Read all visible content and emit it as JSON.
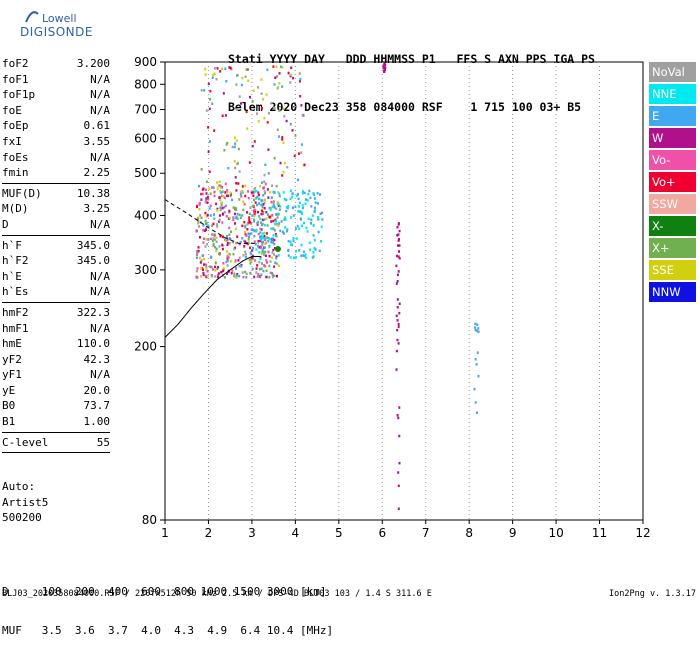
{
  "logo": {
    "line1": "Lowell",
    "line2": "DIGISONDE"
  },
  "header": {
    "line1": "Stati YYYY DAY   DDD HHMMSS P1   FFS S AXN PPS IGA PS",
    "line2": "Belem 2020 Dec23 358 084000 RSF    1 715 100 03+ B5"
  },
  "params": {
    "group1": [
      {
        "name": "foF2",
        "value": "3.200"
      },
      {
        "name": "foF1",
        "value": "N/A"
      },
      {
        "name": "foF1p",
        "value": "N/A"
      },
      {
        "name": "foE",
        "value": "N/A"
      },
      {
        "name": "foEp",
        "value": "0.61"
      },
      {
        "name": "fxI",
        "value": "3.55"
      },
      {
        "name": "foEs",
        "value": "N/A"
      },
      {
        "name": "fmin",
        "value": "2.25"
      }
    ],
    "group2": [
      {
        "name": "MUF(D)",
        "value": "10.38"
      },
      {
        "name": "M(D)",
        "value": "3.25"
      },
      {
        "name": "D",
        "value": "N/A"
      }
    ],
    "group3": [
      {
        "name": "h`F",
        "value": "345.0"
      },
      {
        "name": "h`F2",
        "value": "345.0"
      },
      {
        "name": "h`E",
        "value": "N/A"
      },
      {
        "name": "h`Es",
        "value": "N/A"
      }
    ],
    "group4": [
      {
        "name": "hmF2",
        "value": "322.3"
      },
      {
        "name": "hmF1",
        "value": "N/A"
      },
      {
        "name": "hmE",
        "value": "110.0"
      },
      {
        "name": "yF2",
        "value": "42.3"
      },
      {
        "name": "yF1",
        "value": "N/A"
      },
      {
        "name": "yE",
        "value": "20.0"
      },
      {
        "name": "B0",
        "value": "73.7"
      },
      {
        "name": "B1",
        "value": "1.00"
      }
    ],
    "group5": [
      {
        "name": "C-level",
        "value": "55"
      }
    ]
  },
  "auto": {
    "line1": "Auto:",
    "line2": "Artist5",
    "line3": "500200"
  },
  "legend": [
    {
      "label": "NoVal",
      "color": "#a0a0a0"
    },
    {
      "label": "NNE",
      "color": "#00e8f0"
    },
    {
      "label": "E",
      "color": "#40a8f0"
    },
    {
      "label": "W",
      "color": "#b0108c"
    },
    {
      "label": "Vo-",
      "color": "#f050a8"
    },
    {
      "label": "Vo+",
      "color": "#f00030"
    },
    {
      "label": "SSW",
      "color": "#f0a8a0"
    },
    {
      "label": "X-",
      "color": "#108010"
    },
    {
      "label": "X+",
      "color": "#70b050"
    },
    {
      "label": "SSE",
      "color": "#d0d010"
    },
    {
      "label": "NNW",
      "color": "#1010e0"
    }
  ],
  "bottom": {
    "line1": "D     100  200  400  600  800 1000 1500 3000 [km]",
    "line2": "MUF   3.5  3.6  3.7  4.0  4.3  4.9  6.4 10.4 [MHz]"
  },
  "footer": {
    "left": "BLJ03_2020358084000.RSF / 220fx512h 50 kHz 2.5 km / DPS-4D BLJ03 103 / 1.4 S 311.6 E",
    "right": "Ion2Png v. 1.3.17"
  },
  "chart_data": {
    "type": "scatter",
    "title": "",
    "xlabel": "",
    "ylabel": "",
    "xlim": [
      1,
      12
    ],
    "ylim": [
      80,
      900
    ],
    "y_scale": "log",
    "x_ticks": [
      1,
      2,
      3,
      4,
      5,
      6,
      7,
      8,
      9,
      10,
      11,
      12
    ],
    "y_ticks": [
      80,
      200,
      300,
      400,
      500,
      600,
      700,
      800,
      900
    ],
    "grid": "x dotted",
    "legend_position": "right",
    "echo_clusters": [
      {
        "name": "F-trace main",
        "x_range": [
          1.7,
          3.6
        ],
        "y_range": [
          290,
          480
        ],
        "directions": [
          "W",
          "Vo-",
          "Vo+",
          "E",
          "X+",
          "SSE",
          "NoVal"
        ]
      },
      {
        "name": "E-direction",
        "x_range": [
          3.0,
          4.6
        ],
        "y_range": [
          320,
          460
        ],
        "directions": [
          "E",
          "NNE"
        ]
      },
      {
        "name": "scattered high",
        "x_range": [
          1.8,
          4.2
        ],
        "y_range": [
          480,
          890
        ],
        "directions": [
          "SSE",
          "X+",
          "W",
          "Vo+",
          "E",
          "NoVal"
        ]
      },
      {
        "name": "column 6",
        "x_range": [
          6.0,
          6.05
        ],
        "y_range": [
          840,
          900
        ],
        "directions": [
          "W"
        ]
      },
      {
        "name": "column 6.35",
        "x_range": [
          6.3,
          6.38
        ],
        "y_range": [
          80,
          400
        ],
        "directions": [
          "W"
        ]
      },
      {
        "name": "column 8.15",
        "x_range": [
          8.1,
          8.2
        ],
        "y_range": [
          140,
          230
        ],
        "directions": [
          "E"
        ]
      }
    ],
    "profile_curve": {
      "name": "",
      "x": [
        1,
        1.3,
        1.6,
        1.9,
        2.2,
        2.5,
        2.8,
        3.0,
        3.2
      ],
      "y": [
        210,
        225,
        245,
        265,
        285,
        300,
        315,
        322,
        322
      ]
    },
    "trace_curve": {
      "name": "",
      "x": [
        1,
        1.5,
        2.0,
        2.4,
        2.7,
        3.0,
        3.15
      ],
      "y": [
        435,
        405,
        375,
        355,
        345,
        345,
        345
      ]
    }
  }
}
